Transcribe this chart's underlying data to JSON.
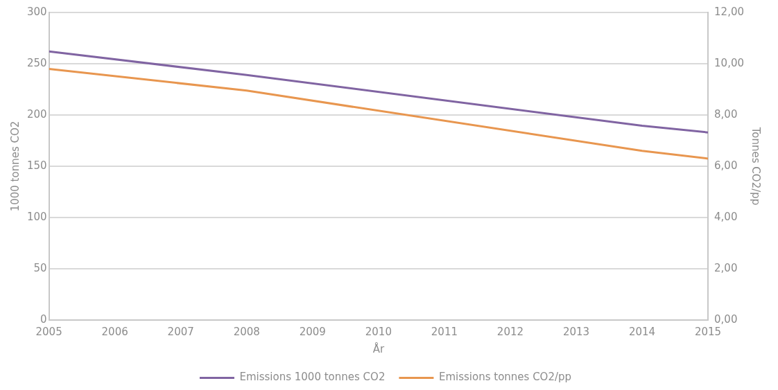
{
  "chart_data": {
    "type": "line",
    "xlabel": "År",
    "ylabel": "1000 tonnes CO2",
    "y2label": "Tonnes CO2/pp",
    "xlim": [
      2005,
      2015
    ],
    "xticks": [
      2005,
      2006,
      2007,
      2008,
      2009,
      2010,
      2011,
      2012,
      2013,
      2014,
      2015
    ],
    "ylim": [
      0,
      300
    ],
    "yticks": [
      0,
      50,
      100,
      150,
      200,
      250,
      300
    ],
    "y2lim": [
      0,
      12
    ],
    "y2ticks": [
      {
        "value": 0,
        "label": "0,00"
      },
      {
        "value": 2,
        "label": "2,00"
      },
      {
        "value": 4,
        "label": "4,00"
      },
      {
        "value": 6,
        "label": "6,00"
      },
      {
        "value": 8,
        "label": "8,00"
      },
      {
        "value": 10,
        "label": "10,00"
      },
      {
        "value": 12,
        "label": "12,00"
      }
    ],
    "series": [
      {
        "name": "Emissions 1000 tonnes CO2",
        "color": "#8064a2",
        "x": [
          2005,
          2008,
          2014,
          2015
        ],
        "values": [
          262,
          239,
          189.5,
          183
        ]
      },
      {
        "name": "Emissions tonnes CO2/pp",
        "color": "#e8964f",
        "axis": "y2",
        "x": [
          2005,
          2008,
          2014,
          2015
        ],
        "values": [
          9.8,
          8.95,
          6.6,
          6.3
        ]
      }
    ],
    "grid": "y",
    "legend": "bottom",
    "marker": "none",
    "line_style": "solid"
  }
}
